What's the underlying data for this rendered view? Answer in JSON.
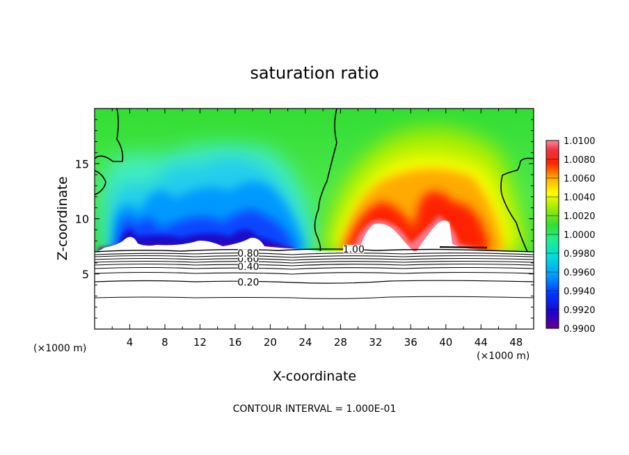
{
  "chart_data": {
    "type": "heatmap",
    "title": "saturation ratio",
    "xlabel": "X-coordinate",
    "ylabel": "Z-coordinate",
    "x_unit": "(×1000 m)",
    "y_unit": "(×1000 m)",
    "xlim": [
      0,
      50
    ],
    "ylim": [
      0,
      20
    ],
    "x_ticks": [
      4,
      8,
      12,
      16,
      20,
      24,
      28,
      32,
      36,
      40,
      44,
      48
    ],
    "y_ticks": [
      5,
      10,
      15
    ],
    "colorbar": {
      "min": 0.99,
      "max": 1.01,
      "tick_labels": [
        "0.9900",
        "0.9920",
        "0.9940",
        "0.9960",
        "0.9980",
        "1.0000",
        "1.0020",
        "1.0040",
        "1.0060",
        "1.0080",
        "1.0100"
      ]
    },
    "contour_labels": [
      {
        "text": "0.20",
        "x": 17.5,
        "z": 4.2
      },
      {
        "text": "0.40",
        "x": 17.5,
        "z": 5.6
      },
      {
        "text": "0.60",
        "x": 17.5,
        "z": 6.3
      },
      {
        "text": "0.80",
        "x": 17.5,
        "z": 6.8
      },
      {
        "text": "1.00",
        "x": 29.5,
        "z": 7.2
      }
    ],
    "contour_interval_note": "CONTOUR INTERVAL = 1.000E-01",
    "grid": false,
    "legend": "colorbar-right"
  }
}
